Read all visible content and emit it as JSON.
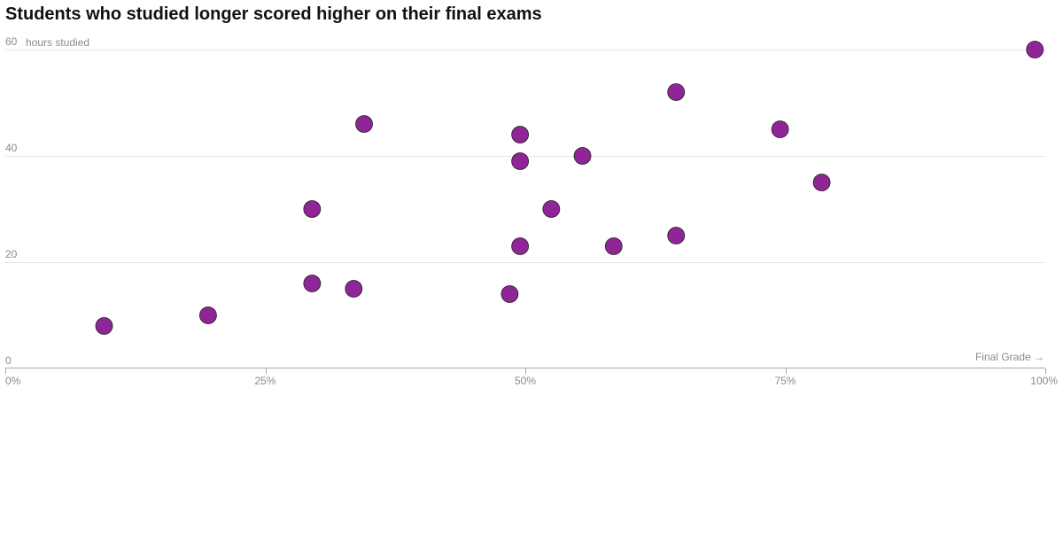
{
  "chart_data": {
    "type": "scatter",
    "title": "Students who studied longer scored higher on their final exams",
    "xlabel": "Final Grade →",
    "ylabel": "hours studied",
    "xlim": [
      0,
      100
    ],
    "ylim": [
      0,
      60
    ],
    "x_ticks": [
      0,
      25,
      50,
      75,
      100
    ],
    "x_tick_labels": [
      "0%",
      "25%",
      "50%",
      "75%",
      "100%"
    ],
    "y_ticks": [
      0,
      20,
      40,
      60
    ],
    "y_tick_labels": [
      "0",
      "20",
      "40",
      "60"
    ],
    "grid": true,
    "point_color": "#8f2596",
    "points": [
      {
        "x": 9.5,
        "y": 8
      },
      {
        "x": 19.5,
        "y": 10
      },
      {
        "x": 29.5,
        "y": 16
      },
      {
        "x": 29.5,
        "y": 30
      },
      {
        "x": 33.5,
        "y": 15
      },
      {
        "x": 34.5,
        "y": 46
      },
      {
        "x": 48.5,
        "y": 14
      },
      {
        "x": 49.5,
        "y": 23
      },
      {
        "x": 49.5,
        "y": 39
      },
      {
        "x": 49.5,
        "y": 44
      },
      {
        "x": 52.5,
        "y": 30
      },
      {
        "x": 55.5,
        "y": 40
      },
      {
        "x": 58.5,
        "y": 23
      },
      {
        "x": 64.5,
        "y": 25
      },
      {
        "x": 64.5,
        "y": 52
      },
      {
        "x": 74.5,
        "y": 45
      },
      {
        "x": 78.5,
        "y": 35
      },
      {
        "x": 99,
        "y": 60
      }
    ]
  }
}
